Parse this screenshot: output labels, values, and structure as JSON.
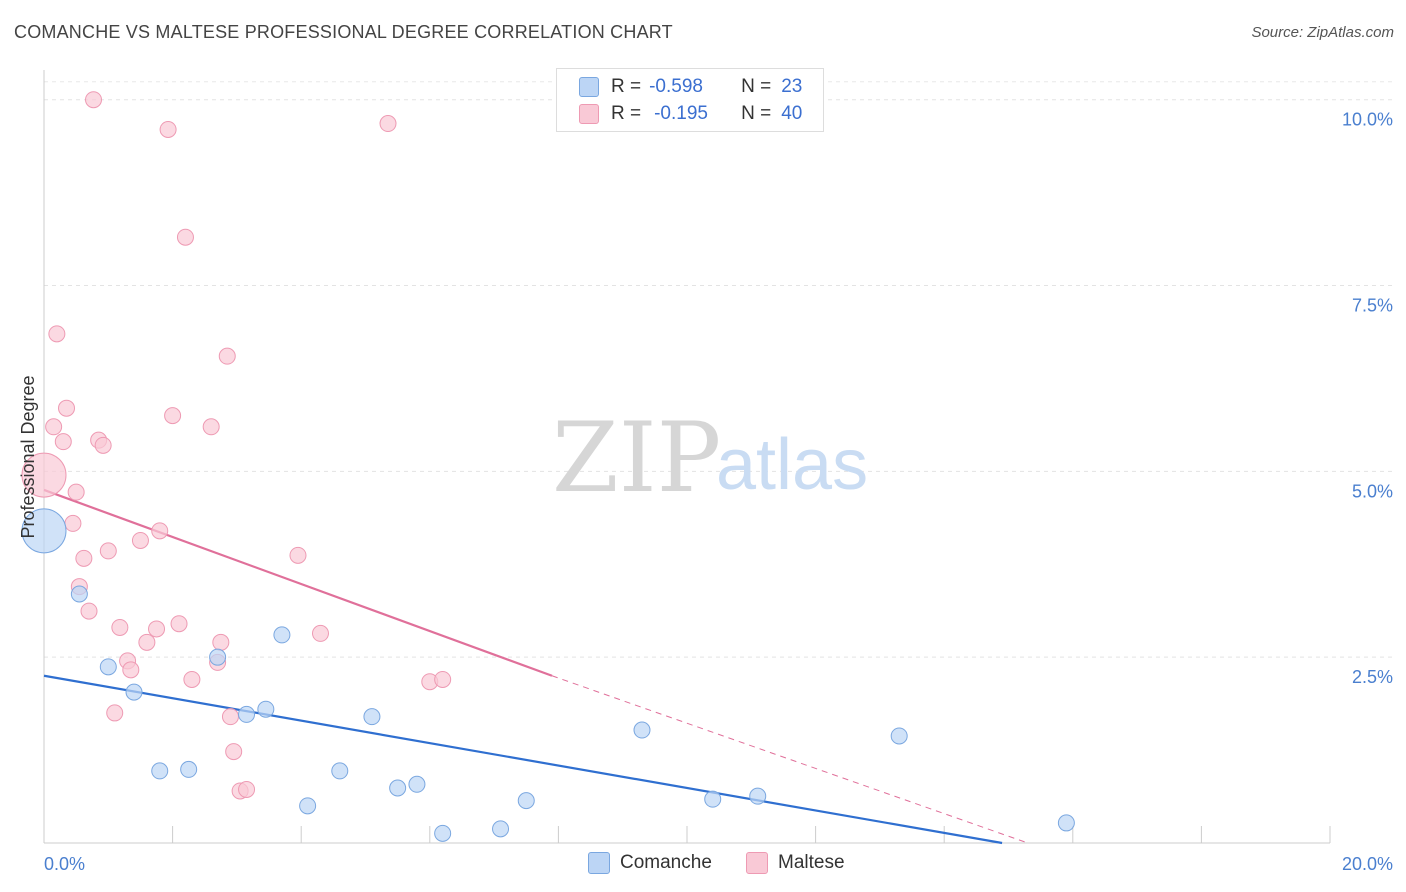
{
  "header": {
    "title": "COMANCHE VS MALTESE PROFESSIONAL DEGREE CORRELATION CHART",
    "source": "Source: ZipAtlas.com"
  },
  "legend": {
    "comanche": {
      "r_label": "R =",
      "r_value": "-0.598",
      "n_label": "N =",
      "n_value": "23"
    },
    "maltese": {
      "r_label": "R =",
      "r_value": "-0.195",
      "n_label": "N =",
      "n_value": "40"
    }
  },
  "watermark": {
    "zip": "ZIP",
    "atlas": "atlas"
  },
  "colors": {
    "comanche_fill": "#bcd5f5",
    "comanche_stroke": "#7aa7e0",
    "comanche_line": "#2f6fd0",
    "maltese_fill": "#f9c9d6",
    "maltese_stroke": "#ee9ab3",
    "maltese_line": "#e0709a"
  },
  "chart_data": {
    "type": "scatter",
    "title": "COMANCHE VS MALTESE PROFESSIONAL DEGREE CORRELATION CHART",
    "xlabel": "",
    "ylabel": "Professional Degree",
    "xlim": [
      0,
      20
    ],
    "ylim": [
      0,
      10.4
    ],
    "x_tick_labels": [
      "0.0%",
      "20.0%"
    ],
    "y_ticks": [
      2.5,
      5.0,
      7.5,
      10.0
    ],
    "y_tick_labels": [
      "2.5%",
      "5.0%",
      "7.5%",
      "10.0%"
    ],
    "series": [
      {
        "name": "Comanche",
        "r": -0.598,
        "n": 23,
        "trend": {
          "x": [
            0,
            14.9
          ],
          "y": [
            2.25,
            0.0
          ]
        },
        "points": [
          {
            "x": 0.0,
            "y": 4.2,
            "big": true
          },
          {
            "x": 0.55,
            "y": 3.35
          },
          {
            "x": 1.0,
            "y": 2.37
          },
          {
            "x": 1.4,
            "y": 2.03
          },
          {
            "x": 1.8,
            "y": 0.97
          },
          {
            "x": 2.25,
            "y": 0.99
          },
          {
            "x": 2.7,
            "y": 2.5
          },
          {
            "x": 3.15,
            "y": 1.73
          },
          {
            "x": 3.45,
            "y": 1.8
          },
          {
            "x": 3.7,
            "y": 2.8
          },
          {
            "x": 4.1,
            "y": 0.5
          },
          {
            "x": 4.6,
            "y": 0.97
          },
          {
            "x": 5.1,
            "y": 1.7
          },
          {
            "x": 5.5,
            "y": 0.74
          },
          {
            "x": 5.8,
            "y": 0.79
          },
          {
            "x": 6.2,
            "y": 0.13
          },
          {
            "x": 7.1,
            "y": 0.19
          },
          {
            "x": 7.5,
            "y": 0.57
          },
          {
            "x": 9.3,
            "y": 1.52
          },
          {
            "x": 10.4,
            "y": 0.59
          },
          {
            "x": 11.1,
            "y": 0.63
          },
          {
            "x": 13.3,
            "y": 1.44
          },
          {
            "x": 15.9,
            "y": 0.27
          }
        ]
      },
      {
        "name": "Maltese",
        "r": -0.195,
        "n": 40,
        "trend": {
          "x": [
            0,
            7.9
          ],
          "y": [
            4.75,
            2.25
          ],
          "dashed_to": {
            "x": 15.3,
            "y": 0.0
          }
        },
        "points": [
          {
            "x": 0.0,
            "y": 4.95,
            "big": true
          },
          {
            "x": 0.15,
            "y": 5.6
          },
          {
            "x": 0.2,
            "y": 6.85
          },
          {
            "x": 0.3,
            "y": 5.4
          },
          {
            "x": 0.35,
            "y": 5.85
          },
          {
            "x": 0.45,
            "y": 4.3
          },
          {
            "x": 0.5,
            "y": 4.72
          },
          {
            "x": 0.55,
            "y": 3.45
          },
          {
            "x": 0.62,
            "y": 3.83
          },
          {
            "x": 0.7,
            "y": 3.12
          },
          {
            "x": 0.77,
            "y": 10.0
          },
          {
            "x": 0.85,
            "y": 5.42
          },
          {
            "x": 0.92,
            "y": 5.35
          },
          {
            "x": 1.0,
            "y": 3.93
          },
          {
            "x": 1.1,
            "y": 1.75
          },
          {
            "x": 1.18,
            "y": 2.9
          },
          {
            "x": 1.3,
            "y": 2.45
          },
          {
            "x": 1.35,
            "y": 2.33
          },
          {
            "x": 1.5,
            "y": 4.07
          },
          {
            "x": 1.6,
            "y": 2.7
          },
          {
            "x": 1.75,
            "y": 2.88
          },
          {
            "x": 1.8,
            "y": 4.2
          },
          {
            "x": 1.93,
            "y": 9.6
          },
          {
            "x": 2.0,
            "y": 5.75
          },
          {
            "x": 2.1,
            "y": 2.95
          },
          {
            "x": 2.2,
            "y": 8.15
          },
          {
            "x": 2.3,
            "y": 2.2
          },
          {
            "x": 2.6,
            "y": 5.6
          },
          {
            "x": 2.7,
            "y": 2.43
          },
          {
            "x": 2.75,
            "y": 2.7
          },
          {
            "x": 2.85,
            "y": 6.55
          },
          {
            "x": 2.9,
            "y": 1.7
          },
          {
            "x": 2.95,
            "y": 1.23
          },
          {
            "x": 3.05,
            "y": 0.7
          },
          {
            "x": 3.15,
            "y": 0.72
          },
          {
            "x": 3.95,
            "y": 3.87
          },
          {
            "x": 4.3,
            "y": 2.82
          },
          {
            "x": 5.35,
            "y": 9.68
          },
          {
            "x": 6.0,
            "y": 2.17
          },
          {
            "x": 6.2,
            "y": 2.2
          }
        ]
      }
    ]
  }
}
